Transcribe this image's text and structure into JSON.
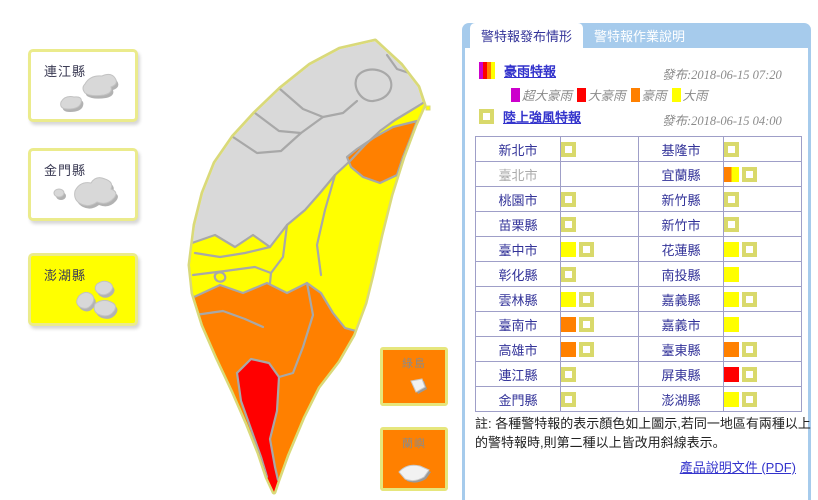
{
  "colors": {
    "gray": "#d9d9d9",
    "yellow": "#ffff00",
    "orange": "#ff8000",
    "red": "#ff0000",
    "magenta": "#cc00cc",
    "wind_border": "#d9d96b",
    "coastline": "#d9d97a",
    "county_border": "#a8a8a8",
    "panel_blue": "#a6cbec",
    "navy_text": "#333399",
    "link_blue": "#3333cc"
  },
  "offshore": {
    "boxes": [
      {
        "label": "連江縣",
        "fill": null
      },
      {
        "label": "金門縣",
        "fill": null
      },
      {
        "label": "澎湖縣",
        "fill": "yellow"
      }
    ]
  },
  "outlying": {
    "boxes": [
      {
        "label": "綠島",
        "fill": "orange"
      },
      {
        "label": "蘭嶼",
        "fill": "orange"
      }
    ]
  },
  "map": {
    "regions": {
      "base": "yellow",
      "north": "gray",
      "yilan": "orange",
      "south": "orange",
      "pingtung": "red",
      "turtle_island": "yellow"
    }
  },
  "panel": {
    "tabs": [
      {
        "label": "警特報發布情形",
        "active": true
      },
      {
        "label": "警特報作業說明",
        "active": false
      }
    ],
    "warnings": [
      {
        "name": "豪雨特報",
        "issued": "發布:2018-06-15 07:20"
      },
      {
        "name": "陸上強風特報",
        "issued": "發布:2018-06-15 04:00"
      }
    ],
    "rain_levels": [
      {
        "label": "超大豪雨",
        "color_key": "magenta"
      },
      {
        "label": "大豪雨",
        "color_key": "red"
      },
      {
        "label": "豪雨",
        "color_key": "orange"
      },
      {
        "label": "大雨",
        "color_key": "yellow"
      }
    ],
    "table": {
      "rows": [
        {
          "left": {
            "name": "新北市",
            "swatches": [
              "wind"
            ]
          },
          "right": {
            "name": "基隆市",
            "swatches": [
              "wind"
            ]
          }
        },
        {
          "left": {
            "name": "臺北市",
            "disabled": true,
            "swatches": []
          },
          "right": {
            "name": "宜蘭縣",
            "swatches": [
              "orange+yellow",
              "wind"
            ]
          }
        },
        {
          "left": {
            "name": "桃園市",
            "swatches": [
              "wind"
            ]
          },
          "right": {
            "name": "新竹縣",
            "swatches": [
              "wind"
            ]
          }
        },
        {
          "left": {
            "name": "苗栗縣",
            "swatches": [
              "wind"
            ]
          },
          "right": {
            "name": "新竹市",
            "swatches": [
              "wind"
            ]
          }
        },
        {
          "left": {
            "name": "臺中市",
            "swatches": [
              "yellow",
              "wind"
            ]
          },
          "right": {
            "name": "花蓮縣",
            "swatches": [
              "yellow",
              "wind"
            ]
          }
        },
        {
          "left": {
            "name": "彰化縣",
            "swatches": [
              "wind"
            ]
          },
          "right": {
            "name": "南投縣",
            "swatches": [
              "yellow"
            ]
          }
        },
        {
          "left": {
            "name": "雲林縣",
            "swatches": [
              "yellow",
              "wind"
            ]
          },
          "right": {
            "name": "嘉義縣",
            "swatches": [
              "yellow",
              "wind"
            ]
          }
        },
        {
          "left": {
            "name": "臺南市",
            "swatches": [
              "orange",
              "wind"
            ]
          },
          "right": {
            "name": "嘉義市",
            "swatches": [
              "yellow"
            ]
          }
        },
        {
          "left": {
            "name": "高雄市",
            "swatches": [
              "orange",
              "wind"
            ]
          },
          "right": {
            "name": "臺東縣",
            "swatches": [
              "orange",
              "wind"
            ]
          }
        },
        {
          "left": {
            "name": "連江縣",
            "swatches": [
              "wind"
            ]
          },
          "right": {
            "name": "屏東縣",
            "swatches": [
              "red",
              "wind"
            ]
          }
        },
        {
          "left": {
            "name": "金門縣",
            "swatches": [
              "wind"
            ]
          },
          "right": {
            "name": "澎湖縣",
            "swatches": [
              "yellow",
              "wind"
            ]
          }
        }
      ]
    },
    "note": "註: 各種警特報的表示顏色如上圖示,若同一地區有兩種以上的警特報時,則第二種以上皆改用斜線表示。",
    "doc_link": "產品說明文件 (PDF)"
  }
}
